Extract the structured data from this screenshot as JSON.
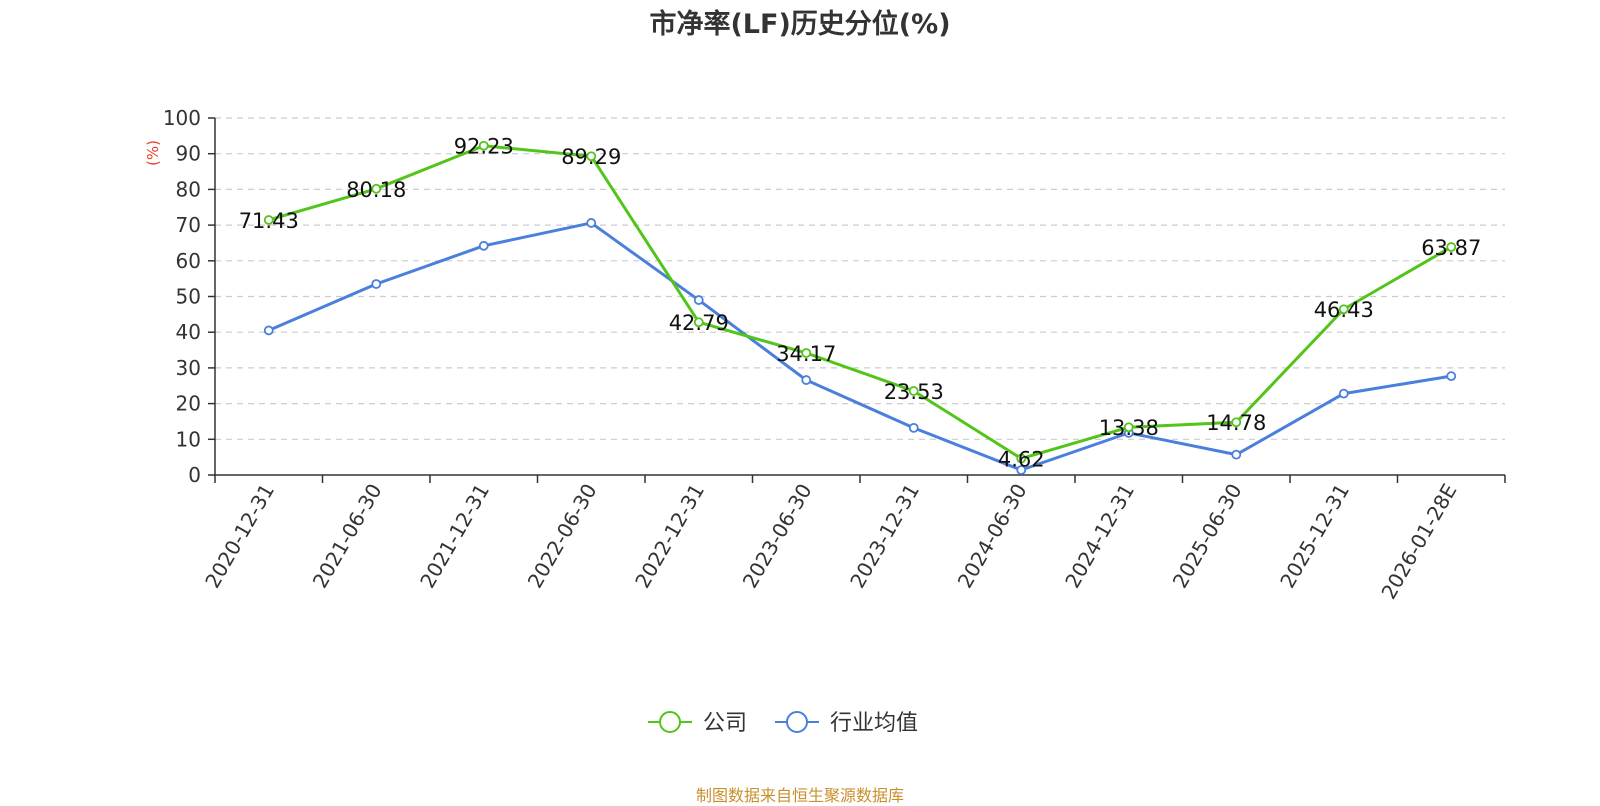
{
  "chart_data": {
    "type": "line",
    "title": "市净率(LF)历史分位(%)",
    "ylabel": "(%)",
    "xlabel": "",
    "ylim": [
      0,
      100
    ],
    "yticks": [
      0,
      10,
      20,
      30,
      40,
      50,
      60,
      70,
      80,
      90,
      100
    ],
    "grid": true,
    "legend_position": "bottom-center",
    "categories": [
      "2020-12-31",
      "2021-06-30",
      "2021-12-31",
      "2022-06-30",
      "2022-12-31",
      "2023-06-30",
      "2023-12-31",
      "2024-06-30",
      "2024-12-31",
      "2025-06-30",
      "2025-12-31",
      "2026-01-28E"
    ],
    "series": [
      {
        "name": "公司",
        "color": "#52c41a",
        "show_labels": true,
        "values": [
          71.43,
          80.18,
          92.23,
          89.29,
          42.79,
          34.17,
          23.53,
          4.62,
          13.38,
          14.78,
          46.43,
          63.87
        ]
      },
      {
        "name": "行业均值",
        "color": "#4a7fdc",
        "show_labels": false,
        "values": [
          40.5,
          53.5,
          64.2,
          70.6,
          49.0,
          26.6,
          13.2,
          1.4,
          11.8,
          5.7,
          22.8,
          27.7
        ]
      }
    ]
  },
  "source": "制图数据来自恒生聚源数据库"
}
